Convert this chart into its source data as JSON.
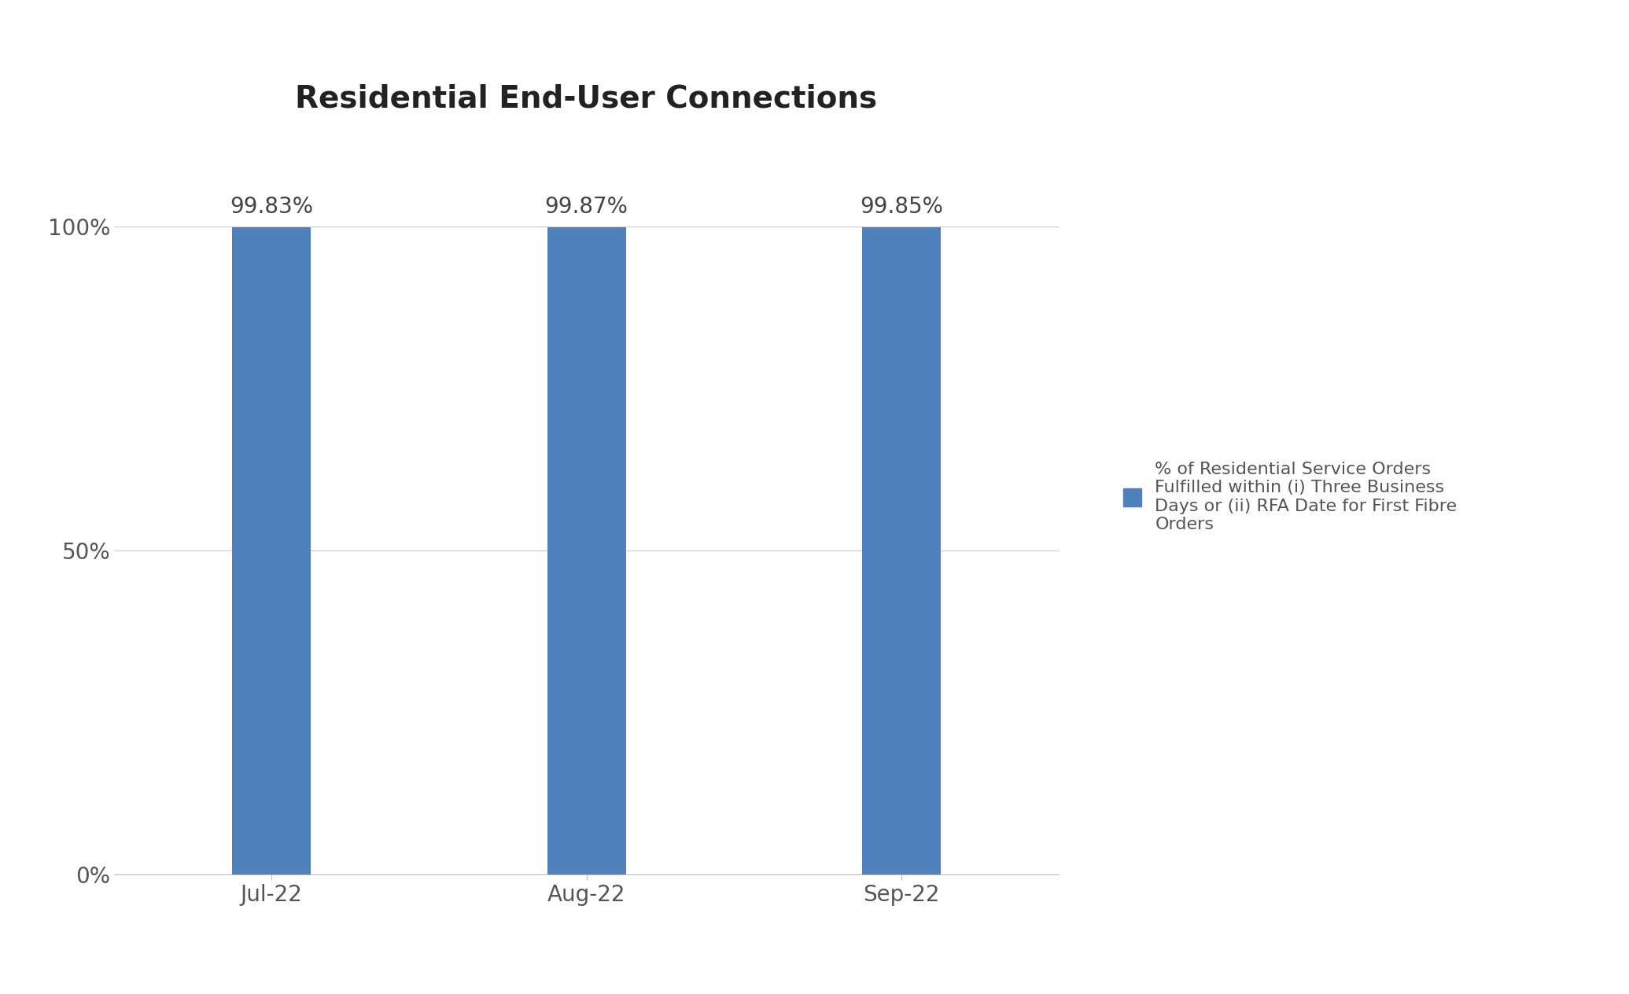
{
  "title": "Residential End-User Connections",
  "categories": [
    "Jul-22",
    "Aug-22",
    "Sep-22"
  ],
  "values": [
    99.83,
    99.87,
    99.85
  ],
  "bar_labels": [
    "99.83%",
    "99.87%",
    "99.85%"
  ],
  "bar_color": "#4F81BD",
  "ylim": [
    0,
    115
  ],
  "yticks": [
    0,
    50,
    100
  ],
  "ytick_labels": [
    "0%",
    "50%",
    "100%"
  ],
  "title_fontsize": 28,
  "tick_fontsize": 20,
  "bar_label_fontsize": 20,
  "legend_label": "% of Residential Service Orders\nFulfilled within (i) Three Business\nDays or (ii) RFA Date for First Fibre\nOrders",
  "legend_fontsize": 16,
  "background_color": "#ffffff",
  "bar_width": 0.25
}
